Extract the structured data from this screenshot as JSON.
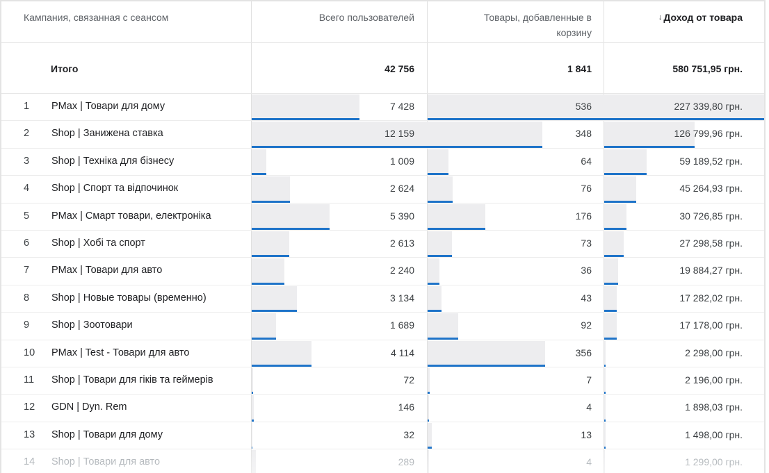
{
  "table": {
    "headers": {
      "campaign": "Кампания, связанная с сеансом",
      "users": "Всего пользователей",
      "cart": "Товары, добавленные в корзину",
      "revenue": "Доход от товара",
      "sort_icon": "arrow-down-icon",
      "sort_glyph": "↓"
    },
    "totals": {
      "label": "Итого",
      "users": "42 756",
      "cart": "1 841",
      "revenue": "580 751,95 грн."
    },
    "bar_colors": {
      "fill": "#ededef",
      "accent": "#1f74c9"
    },
    "rows": [
      {
        "idx": "1",
        "name": "PMax | Товари для дому",
        "users": "7 428",
        "users_v": 7428,
        "cart": "536",
        "cart_v": 536,
        "revenue": "227 339,80 грн.",
        "revenue_v": 227339.8
      },
      {
        "idx": "2",
        "name": "Shop | Занижена ставка",
        "users": "12 159",
        "users_v": 12159,
        "cart": "348",
        "cart_v": 348,
        "revenue": "126 799,96 грн.",
        "revenue_v": 126799.96
      },
      {
        "idx": "3",
        "name": "Shop | Техніка для бізнесу",
        "users": "1 009",
        "users_v": 1009,
        "cart": "64",
        "cart_v": 64,
        "revenue": "59 189,52 грн.",
        "revenue_v": 59189.52
      },
      {
        "idx": "4",
        "name": "Shop | Спорт та відпочинок",
        "users": "2 624",
        "users_v": 2624,
        "cart": "76",
        "cart_v": 76,
        "revenue": "45 264,93 грн.",
        "revenue_v": 45264.93
      },
      {
        "idx": "5",
        "name": "PMax | Смарт товари, електроніка",
        "users": "5 390",
        "users_v": 5390,
        "cart": "176",
        "cart_v": 176,
        "revenue": "30 726,85 грн.",
        "revenue_v": 30726.85
      },
      {
        "idx": "6",
        "name": "Shop | Хобі та спорт",
        "users": "2 613",
        "users_v": 2613,
        "cart": "73",
        "cart_v": 73,
        "revenue": "27 298,58 грн.",
        "revenue_v": 27298.58
      },
      {
        "idx": "7",
        "name": "PMax | Товари для авто",
        "users": "2 240",
        "users_v": 2240,
        "cart": "36",
        "cart_v": 36,
        "revenue": "19 884,27 грн.",
        "revenue_v": 19884.27
      },
      {
        "idx": "8",
        "name": "Shop | Новые товары (временно)",
        "users": "3 134",
        "users_v": 3134,
        "cart": "43",
        "cart_v": 43,
        "revenue": "17 282,02 грн.",
        "revenue_v": 17282.02
      },
      {
        "idx": "9",
        "name": "Shop | Зоотовари",
        "users": "1 689",
        "users_v": 1689,
        "cart": "92",
        "cart_v": 92,
        "revenue": "17 178,00 грн.",
        "revenue_v": 17178.0
      },
      {
        "idx": "10",
        "name": "PMax | Test - Товари для авто",
        "users": "4 114",
        "users_v": 4114,
        "cart": "356",
        "cart_v": 356,
        "revenue": "2 298,00 грн.",
        "revenue_v": 2298.0
      },
      {
        "idx": "11",
        "name": "Shop | Товари для гіків та геймерів",
        "users": "72",
        "users_v": 72,
        "cart": "7",
        "cart_v": 7,
        "revenue": "2 196,00 грн.",
        "revenue_v": 2196.0
      },
      {
        "idx": "12",
        "name": "GDN | Dyn. Rem",
        "users": "146",
        "users_v": 146,
        "cart": "4",
        "cart_v": 4,
        "revenue": "1 898,03 грн.",
        "revenue_v": 1898.03
      },
      {
        "idx": "13",
        "name": "Shop | Товари для дому",
        "users": "32",
        "users_v": 32,
        "cart": "13",
        "cart_v": 13,
        "revenue": "1 498,00 грн.",
        "revenue_v": 1498.0
      },
      {
        "idx": "14",
        "name": "Shop | Товари для авто",
        "users": "289",
        "users_v": 289,
        "cart": "4",
        "cart_v": 4,
        "revenue": "1 299,00 грн.",
        "revenue_v": 1299.0
      }
    ]
  }
}
